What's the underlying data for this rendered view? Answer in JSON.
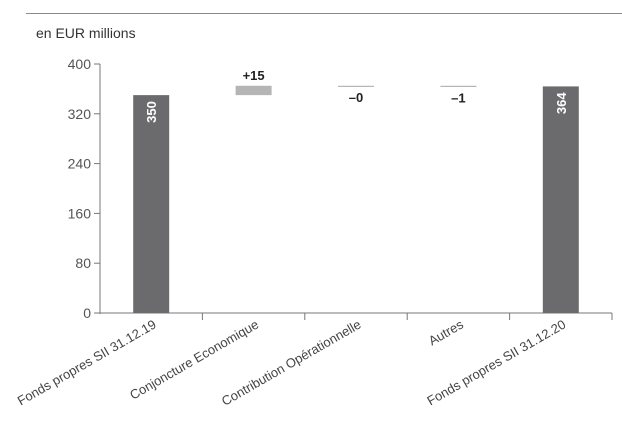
{
  "unit_label": "en EUR millions",
  "chart_data": {
    "type": "bar",
    "subtype": "waterfall",
    "title": "",
    "xlabel": "",
    "ylabel": "en EUR millions",
    "ylim": [
      0,
      400
    ],
    "yticks": [
      0,
      80,
      160,
      240,
      320,
      400
    ],
    "grid": false,
    "categories": [
      "Fonds propres SII 31.12.19",
      "Conjoncture Economique",
      "Contribution Opérationnelle",
      "Autres",
      "Fonds propres SII 31.12.20"
    ],
    "values": [
      350,
      15,
      0,
      -1,
      364
    ],
    "bar_kinds": [
      "total",
      "delta",
      "delta",
      "delta",
      "total"
    ],
    "value_labels": [
      "350",
      "+15",
      "–0",
      "–1",
      "364"
    ],
    "colors": {
      "total": "#6b6b6d",
      "delta": "#b5b5b5",
      "axis": "#777777"
    }
  }
}
